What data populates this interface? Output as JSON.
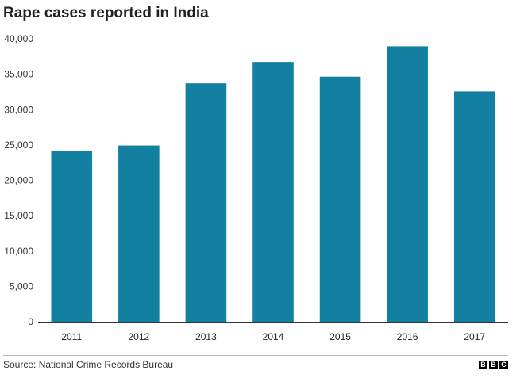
{
  "chart_data": {
    "type": "bar",
    "title": "Rape cases reported in India",
    "categories": [
      "2011",
      "2012",
      "2013",
      "2014",
      "2015",
      "2016",
      "2017"
    ],
    "values": [
      24206,
      24923,
      33707,
      36735,
      34651,
      38947,
      32559
    ],
    "ylim": [
      0,
      40000
    ],
    "yticks": [
      0,
      5000,
      10000,
      15000,
      20000,
      25000,
      30000,
      35000,
      40000
    ],
    "ytick_labels": [
      "0",
      "5,000",
      "10,000",
      "15,000",
      "20,000",
      "25,000",
      "30,000",
      "35,000",
      "40,000"
    ],
    "xlabel": "",
    "ylabel": "",
    "grid": false,
    "bar_color": "#1380a1",
    "axis_color": "#333333"
  },
  "source": "Source: National Crime Records Bureau",
  "logo": {
    "letters": [
      "B",
      "B",
      "C"
    ]
  }
}
